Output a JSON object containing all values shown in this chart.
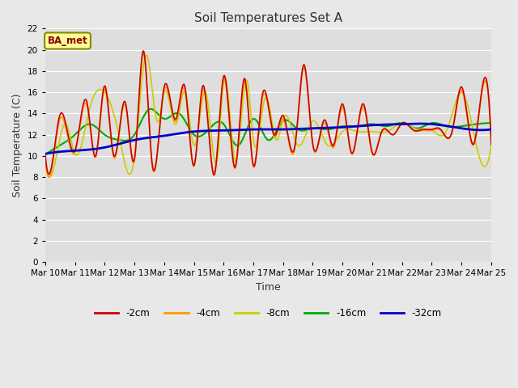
{
  "title": "Soil Temperatures Set A",
  "xlabel": "Time",
  "ylabel": "Soil Temperature (C)",
  "annotation": "BA_met",
  "ylim": [
    0,
    22
  ],
  "yticks": [
    0,
    2,
    4,
    6,
    8,
    10,
    12,
    14,
    16,
    18,
    20,
    22
  ],
  "xtick_labels": [
    "Mar 10",
    "Mar 11",
    "Mar 12",
    "Mar 13",
    "Mar 14",
    "Mar 15",
    "Mar 16",
    "Mar 17",
    "Mar 18",
    "Mar 19",
    "Mar 20",
    "Mar 21",
    "Mar 22",
    "Mar 23",
    "Mar 24",
    "Mar 25"
  ],
  "legend_labels": [
    "-2cm",
    "-4cm",
    "-8cm",
    "-16cm",
    "-32cm"
  ],
  "line_colors": [
    "#cc0000",
    "#ff9900",
    "#cccc00",
    "#00aa00",
    "#0000cc"
  ],
  "line_widths": [
    1.2,
    1.2,
    1.2,
    1.5,
    2.0
  ],
  "background_color": "#e8e8e8",
  "plot_bg_color": "#dedede",
  "title_fontsize": 11,
  "axis_label_fontsize": 9,
  "tick_fontsize": 7.5,
  "figsize": [
    6.4,
    4.8
  ],
  "dpi": 100,
  "peaks_2cm": [
    0.0,
    0.3,
    0.5,
    1.0,
    1.4,
    1.7,
    2.0,
    2.3,
    2.7,
    3.0,
    3.3,
    3.6,
    4.0,
    4.4,
    4.7,
    5.0,
    5.3,
    5.7,
    6.0,
    6.4,
    6.7,
    7.0,
    7.3,
    7.7,
    8.0,
    8.4,
    8.7,
    9.0,
    9.4,
    9.7,
    10.0,
    10.3,
    10.7,
    11.0,
    11.3,
    11.7,
    12.0,
    12.4,
    12.7,
    13.0,
    13.3,
    13.7,
    14.0,
    14.4,
    14.7,
    15.0
  ],
  "vals_2cm": [
    10.2,
    10.5,
    13.9,
    10.5,
    15.1,
    10.0,
    16.6,
    10.1,
    15.0,
    9.7,
    19.9,
    9.2,
    16.5,
    13.5,
    16.5,
    9.1,
    16.6,
    8.3,
    17.5,
    9.0,
    17.3,
    9.1,
    15.7,
    12.0,
    13.8,
    11.0,
    18.6,
    11.1,
    13.4,
    11.0,
    14.9,
    10.3,
    14.9,
    10.3,
    12.2,
    12.0,
    13.1,
    12.4,
    12.5,
    12.5,
    12.5,
    12.5,
    16.5,
    11.1,
    16.5,
    11.1
  ],
  "peaks_4cm": [
    0.0,
    0.3,
    0.5,
    1.0,
    1.4,
    1.7,
    2.0,
    2.3,
    2.7,
    3.0,
    3.3,
    3.6,
    4.0,
    4.4,
    4.7,
    5.0,
    5.3,
    5.7,
    6.0,
    6.4,
    6.7,
    7.0,
    7.3,
    7.7,
    8.0,
    8.4,
    8.7,
    9.0,
    9.4,
    9.7,
    10.0,
    10.3,
    10.7,
    11.0,
    11.3,
    11.7,
    12.0,
    12.4,
    12.7,
    13.0,
    13.3,
    13.7,
    14.0,
    14.4,
    14.7,
    15.0
  ],
  "vals_4cm": [
    9.7,
    10.2,
    13.5,
    10.3,
    14.8,
    9.9,
    16.3,
    9.9,
    14.7,
    9.6,
    19.7,
    9.1,
    16.2,
    13.3,
    16.2,
    9.0,
    16.3,
    8.5,
    17.2,
    8.9,
    17.0,
    9.0,
    15.4,
    11.8,
    13.5,
    10.8,
    18.3,
    11.0,
    13.1,
    10.8,
    14.6,
    10.2,
    14.6,
    10.2,
    12.1,
    12.0,
    13.0,
    12.4,
    12.4,
    12.4,
    12.4,
    12.4,
    16.2,
    11.0,
    16.2,
    11.0
  ],
  "peaks_8cm": [
    0.0,
    0.4,
    0.7,
    1.0,
    1.5,
    2.0,
    2.5,
    3.0,
    3.4,
    3.8,
    4.0,
    4.4,
    4.7,
    5.0,
    5.4,
    5.8,
    6.0,
    6.4,
    6.8,
    7.0,
    7.4,
    7.8,
    8.0,
    8.5,
    9.0,
    9.5,
    10.0,
    10.5,
    11.0,
    11.5,
    12.0,
    12.5,
    13.0,
    13.5,
    14.0,
    14.5,
    15.0
  ],
  "vals_8cm": [
    9.6,
    10.3,
    13.0,
    10.2,
    14.5,
    16.0,
    11.7,
    9.8,
    19.5,
    13.2,
    16.0,
    13.0,
    16.0,
    11.0,
    16.0,
    10.0,
    17.0,
    9.5,
    17.0,
    11.5,
    15.5,
    11.5,
    13.5,
    11.0,
    13.3,
    11.0,
    12.3,
    12.3,
    12.3,
    12.3,
    13.1,
    12.5,
    12.4,
    12.4,
    16.0,
    11.0,
    11.0
  ],
  "peaks_16cm": [
    0.0,
    0.5,
    1.0,
    1.5,
    2.0,
    2.5,
    3.0,
    3.5,
    4.0,
    4.5,
    5.0,
    5.5,
    6.0,
    6.5,
    7.0,
    7.5,
    8.0,
    8.5,
    9.0,
    9.5,
    10.0,
    10.5,
    11.0,
    11.5,
    12.0,
    12.5,
    13.0,
    13.5,
    14.0,
    14.5,
    15.0
  ],
  "vals_16cm": [
    10.1,
    11.0,
    12.0,
    13.0,
    12.0,
    11.5,
    12.0,
    14.4,
    13.5,
    14.0,
    12.0,
    12.5,
    13.0,
    11.0,
    13.5,
    11.5,
    13.3,
    12.5,
    12.6,
    12.5,
    12.8,
    12.8,
    13.0,
    12.8,
    13.1,
    12.6,
    13.1,
    12.8,
    12.8,
    13.0,
    13.1
  ],
  "peaks_32cm": [
    0.0,
    1.0,
    2.0,
    3.0,
    4.0,
    5.0,
    6.0,
    7.0,
    8.0,
    9.0,
    10.0,
    11.0,
    12.0,
    13.0,
    14.0,
    15.0
  ],
  "vals_32cm": [
    10.2,
    10.5,
    10.8,
    11.5,
    11.9,
    12.3,
    12.4,
    12.5,
    12.5,
    12.6,
    12.7,
    12.9,
    13.0,
    13.0,
    12.6,
    12.5
  ]
}
